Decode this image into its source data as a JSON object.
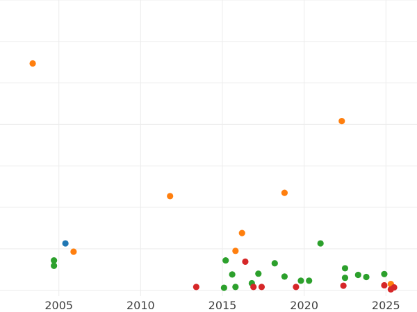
{
  "chart_data": {
    "type": "scatter",
    "title": "",
    "xlabel": "",
    "ylabel": "",
    "xlim": [
      2001.4,
      2026.9
    ],
    "ylim": [
      -0.14,
      6.9
    ],
    "x_ticks": [
      2005,
      2010,
      2015,
      2020,
      2025
    ],
    "x_tick_labels": [
      "2005",
      "2010",
      "2015",
      "2020",
      "2025"
    ],
    "y_gridlines": [
      0,
      1,
      2,
      3,
      4,
      5,
      6,
      7
    ],
    "grid": true,
    "legend": "none",
    "series": [
      {
        "color": "#1f77b4",
        "points": [
          [
            2005.4,
            1.13
          ]
        ]
      },
      {
        "color": "#ff7f0e",
        "points": [
          [
            2003.4,
            5.47
          ],
          [
            2005.9,
            0.93
          ],
          [
            2011.8,
            2.27
          ],
          [
            2015.8,
            0.95
          ],
          [
            2016.2,
            1.38
          ],
          [
            2018.8,
            2.35
          ],
          [
            2022.3,
            4.08
          ],
          [
            2025.3,
            0.15
          ]
        ]
      },
      {
        "color": "#2ca02c",
        "points": [
          [
            2004.7,
            0.72
          ],
          [
            2004.7,
            0.59
          ],
          [
            2015.2,
            0.72
          ],
          [
            2015.6,
            0.38
          ],
          [
            2015.1,
            0.06
          ],
          [
            2015.8,
            0.08
          ],
          [
            2016.8,
            0.17
          ],
          [
            2017.2,
            0.4
          ],
          [
            2018.2,
            0.65
          ],
          [
            2018.8,
            0.33
          ],
          [
            2019.8,
            0.23
          ],
          [
            2020.3,
            0.23
          ],
          [
            2021.0,
            1.13
          ],
          [
            2022.5,
            0.53
          ],
          [
            2022.5,
            0.3
          ],
          [
            2023.3,
            0.37
          ],
          [
            2023.8,
            0.32
          ],
          [
            2024.9,
            0.39
          ]
        ]
      },
      {
        "color": "#d62728",
        "points": [
          [
            2013.4,
            0.08
          ],
          [
            2016.4,
            0.69
          ],
          [
            2016.9,
            0.08
          ],
          [
            2017.4,
            0.08
          ],
          [
            2019.5,
            0.08
          ],
          [
            2022.4,
            0.11
          ],
          [
            2024.9,
            0.12
          ],
          [
            2025.3,
            0.02
          ],
          [
            2025.5,
            0.07
          ]
        ]
      }
    ]
  }
}
